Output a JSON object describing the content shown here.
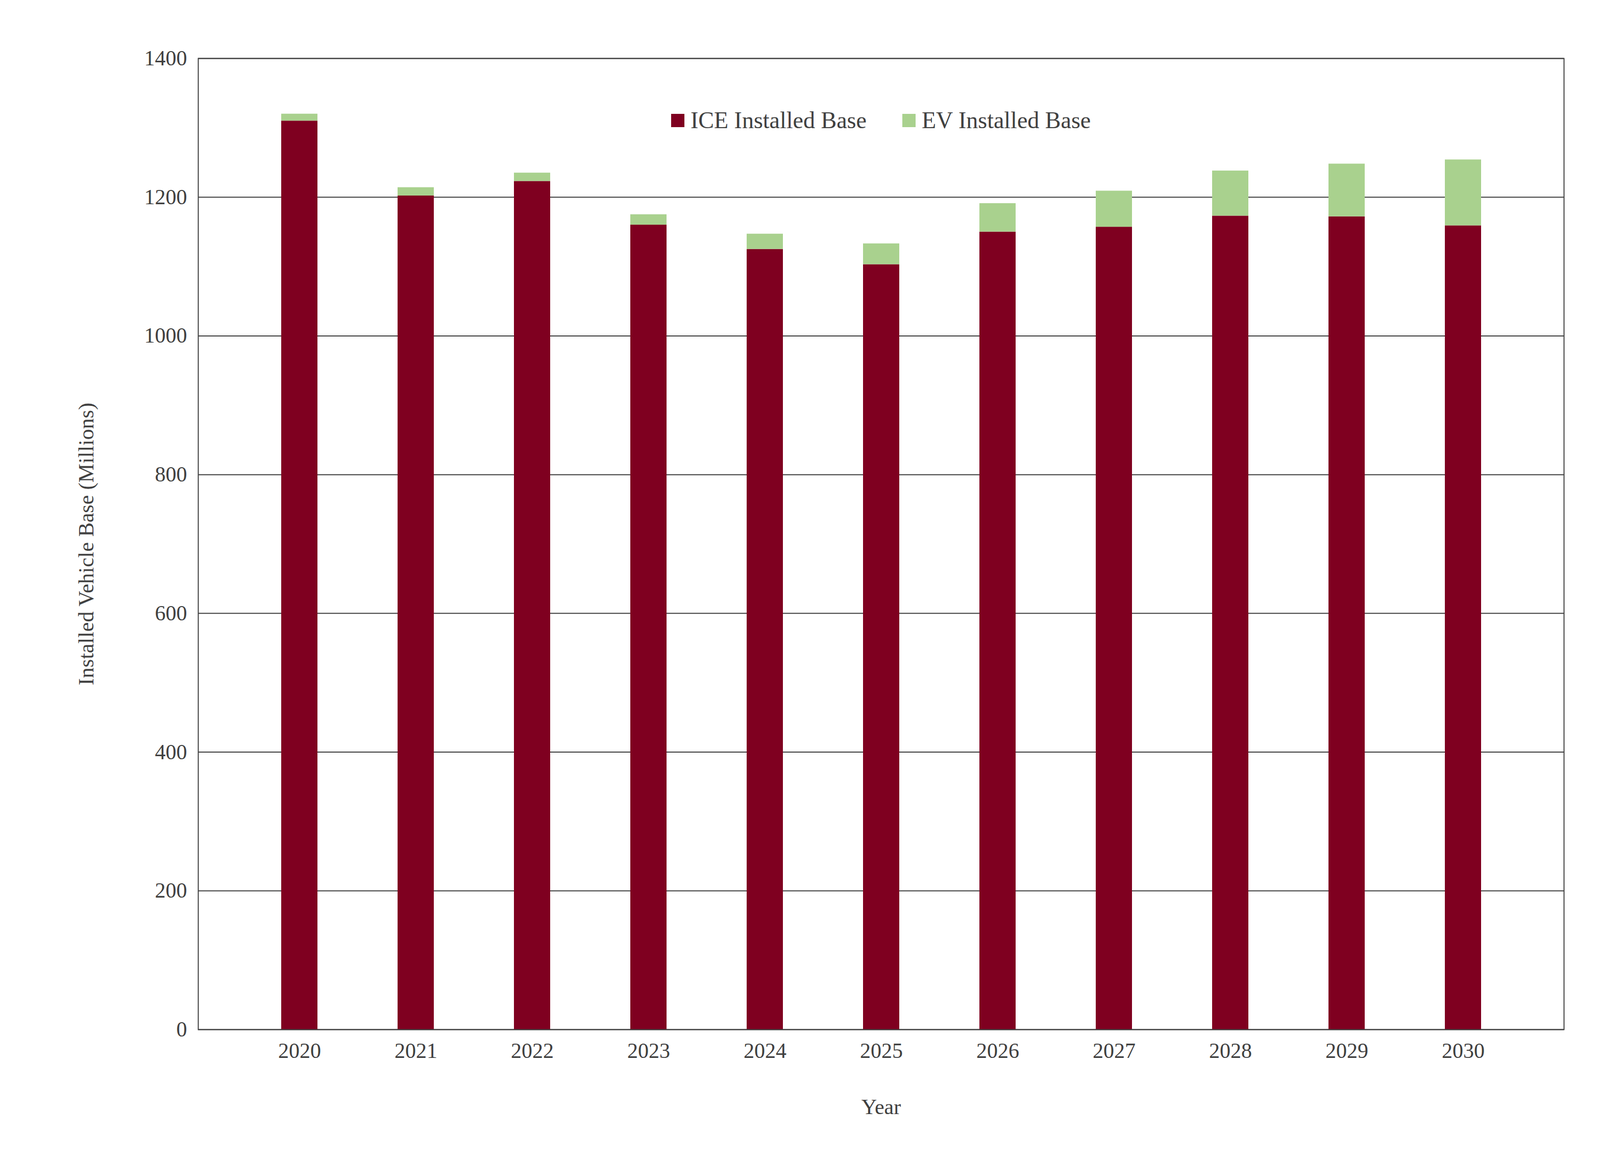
{
  "chart_data": {
    "type": "bar",
    "stacked": true,
    "x_label": "Year",
    "y_label": "Installed Vehicle Base (Millions)",
    "categories": [
      "2020",
      "2021",
      "2022",
      "2023",
      "2024",
      "2025",
      "2026",
      "2027",
      "2028",
      "2029",
      "2030"
    ],
    "series": [
      {
        "name": "ICE Installed Base",
        "color": "#7f0020",
        "values": [
          1310,
          1202,
          1223,
          1160,
          1125,
          1103,
          1150,
          1157,
          1173,
          1172,
          1159
        ]
      },
      {
        "name": "EV Installed Base",
        "color": "#a9d18e",
        "values": [
          10,
          12,
          12,
          15,
          22,
          30,
          41,
          52,
          65,
          76,
          95
        ]
      }
    ],
    "ylim": [
      0,
      1400
    ],
    "yticks": [
      0,
      200,
      400,
      600,
      800,
      1000,
      1200,
      1400
    ],
    "grid": true,
    "legend": "top"
  }
}
